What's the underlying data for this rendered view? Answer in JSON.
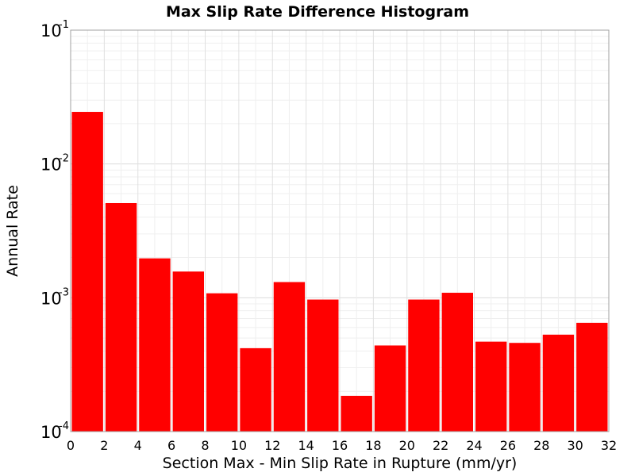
{
  "chart_data": {
    "type": "bar",
    "title": "Max Slip Rate Difference Histogram",
    "xlabel": "Section Max - Min Slip Rate in Rupture (mm/yr)",
    "ylabel": "Annual Rate",
    "xlim": [
      0,
      32
    ],
    "ylim": [
      0.0001,
      0.1
    ],
    "yscale": "log",
    "grid": true,
    "bar_color": "#ff0000",
    "x_ticks": [
      "0",
      "2",
      "4",
      "6",
      "8",
      "10",
      "12",
      "14",
      "16",
      "18",
      "20",
      "22",
      "24",
      "26",
      "28",
      "30",
      "32"
    ],
    "y_ticks": [
      {
        "base": "10",
        "exp": "-4",
        "value": 0.0001
      },
      {
        "base": "10",
        "exp": "-3",
        "value": 0.001
      },
      {
        "base": "10",
        "exp": "-2",
        "value": 0.01
      },
      {
        "base": "10",
        "exp": "-1",
        "value": 0.1
      }
    ],
    "bins": [
      {
        "x0": 0,
        "x1": 2,
        "value": 0.0245
      },
      {
        "x0": 2,
        "x1": 4,
        "value": 0.0051
      },
      {
        "x0": 4,
        "x1": 6,
        "value": 0.00197
      },
      {
        "x0": 6,
        "x1": 8,
        "value": 0.00157
      },
      {
        "x0": 8,
        "x1": 10,
        "value": 0.00108
      },
      {
        "x0": 10,
        "x1": 12,
        "value": 0.00042
      },
      {
        "x0": 12,
        "x1": 14,
        "value": 0.00131
      },
      {
        "x0": 14,
        "x1": 16,
        "value": 0.00097
      },
      {
        "x0": 16,
        "x1": 18,
        "value": 0.000185
      },
      {
        "x0": 18,
        "x1": 20,
        "value": 0.00044
      },
      {
        "x0": 20,
        "x1": 22,
        "value": 0.00097
      },
      {
        "x0": 22,
        "x1": 24,
        "value": 0.00109
      },
      {
        "x0": 24,
        "x1": 26,
        "value": 0.00047
      },
      {
        "x0": 26,
        "x1": 28,
        "value": 0.00046
      },
      {
        "x0": 28,
        "x1": 30,
        "value": 0.00053
      },
      {
        "x0": 30,
        "x1": 32,
        "value": 0.00065
      }
    ]
  }
}
